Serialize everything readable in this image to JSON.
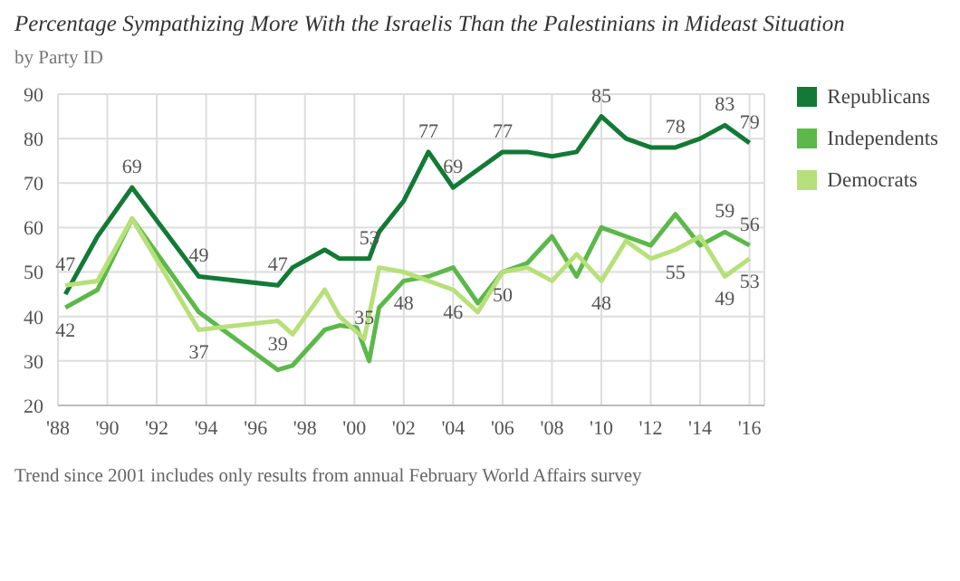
{
  "chart_data": {
    "type": "line",
    "title": "Percentage Sympathizing More With the Israelis Than the Palestinians in Mideast Situation",
    "subtitle": "by Party ID",
    "annotations": [
      "Trend since 2001 includes only results from annual February World Affairs survey"
    ],
    "series": [
      {
        "name": "Republicans",
        "color": "#137a36",
        "x": [
          1988.3,
          1989.6,
          1991,
          1993.7,
          1996.9,
          1997.5,
          1998.8,
          1999.4,
          2000.6,
          2001,
          2002,
          2003,
          2004,
          2005,
          2006,
          2007,
          2008,
          2009,
          2010,
          2011,
          2012,
          2013,
          2014,
          2015,
          2016
        ],
        "values": [
          45,
          58,
          69,
          49,
          47,
          51,
          55,
          53,
          53,
          59,
          66,
          77,
          69,
          73,
          77,
          77,
          76,
          77,
          85,
          80,
          78,
          78,
          80,
          83,
          79
        ],
        "value_labels": [
          null,
          null,
          "69",
          "49",
          "47",
          null,
          null,
          null,
          "53",
          null,
          null,
          "77",
          "69",
          null,
          "77",
          null,
          null,
          null,
          "85",
          null,
          null,
          "78",
          null,
          "83",
          "79"
        ]
      },
      {
        "name": "Independents",
        "color": "#5cb84a",
        "x": [
          1988.3,
          1989.6,
          1991,
          1993.7,
          1996.9,
          1997.5,
          1998.8,
          1999.4,
          2000.1,
          2000.6,
          2001,
          2002,
          2003,
          2004,
          2005,
          2006,
          2007,
          2008,
          2009,
          2010,
          2011,
          2012,
          2013,
          2014,
          2015,
          2016
        ],
        "values": [
          42,
          46,
          62,
          41,
          28,
          29,
          37,
          38,
          37.5,
          30,
          42,
          48,
          49,
          51,
          43,
          50,
          52,
          58,
          49,
          60,
          58,
          56,
          63,
          56,
          59,
          56
        ],
        "value_labels": [
          "42",
          null,
          null,
          null,
          null,
          null,
          null,
          null,
          null,
          null,
          null,
          "48",
          null,
          null,
          null,
          "50",
          null,
          null,
          null,
          null,
          null,
          null,
          null,
          null,
          "59",
          "56"
        ]
      },
      {
        "name": "Democrats",
        "color": "#b7e07a",
        "x": [
          1988.3,
          1989.6,
          1991,
          1993.7,
          1996.9,
          1997.5,
          1998.8,
          1999.4,
          2000.4,
          2001,
          2002,
          2003,
          2004,
          2005,
          2006,
          2007,
          2008,
          2009,
          2010,
          2011,
          2012,
          2013,
          2014,
          2015,
          2016
        ],
        "values": [
          47,
          48,
          62,
          37,
          39,
          36,
          46,
          40,
          35,
          51,
          50,
          48,
          46,
          41,
          50,
          51,
          48,
          54,
          48,
          57,
          53,
          55,
          58,
          49,
          53
        ],
        "value_labels": [
          "47",
          null,
          null,
          "37",
          "39",
          null,
          null,
          null,
          "35",
          null,
          null,
          null,
          "46",
          null,
          null,
          null,
          null,
          null,
          "48",
          null,
          null,
          "55",
          null,
          "49",
          "53"
        ]
      }
    ],
    "xlim": [
      1988,
      2016.6
    ],
    "xticks": [
      {
        "value": 1988,
        "label": "'88"
      },
      {
        "value": 1990,
        "label": "'90"
      },
      {
        "value": 1992,
        "label": "'92"
      },
      {
        "value": 1994,
        "label": "'94"
      },
      {
        "value": 1996,
        "label": "'96"
      },
      {
        "value": 1998,
        "label": "'98"
      },
      {
        "value": 2000,
        "label": "'00"
      },
      {
        "value": 2002,
        "label": "'02"
      },
      {
        "value": 2004,
        "label": "'04"
      },
      {
        "value": 2006,
        "label": "'06"
      },
      {
        "value": 2008,
        "label": "'08"
      },
      {
        "value": 2010,
        "label": "'10"
      },
      {
        "value": 2012,
        "label": "'12"
      },
      {
        "value": 2014,
        "label": "'14"
      },
      {
        "value": 2016,
        "label": "'16"
      }
    ],
    "ylim": [
      20,
      90
    ],
    "yticks": [
      20,
      30,
      40,
      50,
      60,
      70,
      80,
      90
    ],
    "grid": true,
    "legend": "top right",
    "marker": "none",
    "line_style": "solid"
  }
}
